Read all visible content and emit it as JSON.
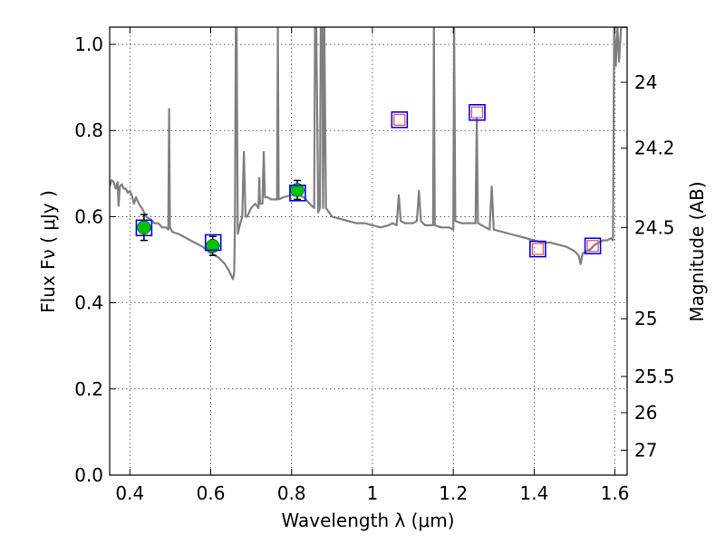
{
  "chart_data": {
    "type": "scatter",
    "xlabel": "Wavelength  λ (μm)",
    "ylabel": "Flux  Fν  ( μJy )",
    "y2label": "Magnitude (AB)",
    "xlim": [
      0.35,
      1.63
    ],
    "ylim": [
      0.0,
      1.04
    ],
    "x_ticks": [
      0.4,
      0.6,
      0.8,
      1.0,
      1.2,
      1.4,
      1.6
    ],
    "x_tick_labels": [
      "0.4",
      "0.6",
      "0.8",
      "1",
      "1.2",
      "1.4",
      "1.6"
    ],
    "y_ticks": [
      0.0,
      0.2,
      0.4,
      0.6,
      0.8,
      1.0
    ],
    "y_tick_labels": [
      "0.0",
      "0.2",
      "0.4",
      "0.6",
      "0.8",
      "1.0"
    ],
    "y2_ticks": [
      {
        "label": "24",
        "flux": 0.912
      },
      {
        "label": "24.2",
        "flux": 0.759
      },
      {
        "label": "24.5",
        "flux": 0.575
      },
      {
        "label": "25",
        "flux": 0.363
      },
      {
        "label": "25.5",
        "flux": 0.229
      },
      {
        "label": "26",
        "flux": 0.145
      },
      {
        "label": "27",
        "flux": 0.058
      }
    ],
    "grid": true,
    "colors": {
      "model": "#7f7f7f",
      "observed": "#00c000",
      "model_box": "#0000ff",
      "upper_box": "#ff5555"
    },
    "series": [
      {
        "kind": "model_spectrum",
        "points": [
          [
            0.35,
            0.67
          ],
          [
            0.355,
            0.685
          ],
          [
            0.36,
            0.68
          ],
          [
            0.365,
            0.665
          ],
          [
            0.37,
            0.68
          ],
          [
            0.372,
            0.625
          ],
          [
            0.375,
            0.67
          ],
          [
            0.38,
            0.675
          ],
          [
            0.385,
            0.665
          ],
          [
            0.39,
            0.665
          ],
          [
            0.395,
            0.655
          ],
          [
            0.4,
            0.66
          ],
          [
            0.405,
            0.65
          ],
          [
            0.41,
            0.63
          ],
          [
            0.415,
            0.645
          ],
          [
            0.42,
            0.635
          ],
          [
            0.425,
            0.625
          ],
          [
            0.43,
            0.62
          ],
          [
            0.435,
            0.61
          ],
          [
            0.44,
            0.6
          ],
          [
            0.45,
            0.595
          ],
          [
            0.46,
            0.585
          ],
          [
            0.47,
            0.585
          ],
          [
            0.48,
            0.575
          ],
          [
            0.49,
            0.575
          ],
          [
            0.495,
            0.57
          ],
          [
            0.497,
            0.85
          ],
          [
            0.499,
            0.575
          ],
          [
            0.505,
            0.565
          ],
          [
            0.52,
            0.56
          ],
          [
            0.54,
            0.55
          ],
          [
            0.56,
            0.54
          ],
          [
            0.58,
            0.53
          ],
          [
            0.6,
            0.515
          ],
          [
            0.62,
            0.505
          ],
          [
            0.635,
            0.49
          ],
          [
            0.645,
            0.475
          ],
          [
            0.65,
            0.465
          ],
          [
            0.655,
            0.455
          ],
          [
            0.658,
            0.47
          ],
          [
            0.66,
            0.6
          ],
          [
            0.662,
            1.04
          ],
          [
            0.664,
            1.04
          ],
          [
            0.667,
            0.56
          ],
          [
            0.672,
            0.58
          ],
          [
            0.678,
            0.6
          ],
          [
            0.682,
            0.75
          ],
          [
            0.686,
            0.6
          ],
          [
            0.69,
            0.6
          ],
          [
            0.7,
            0.62
          ],
          [
            0.71,
            0.63
          ],
          [
            0.718,
            0.62
          ],
          [
            0.72,
            0.69
          ],
          [
            0.722,
            0.63
          ],
          [
            0.728,
            0.63
          ],
          [
            0.731,
            0.75
          ],
          [
            0.734,
            0.645
          ],
          [
            0.74,
            0.645
          ],
          [
            0.75,
            0.64
          ],
          [
            0.76,
            0.64
          ],
          [
            0.764,
            0.64
          ],
          [
            0.766,
            1.04
          ],
          [
            0.768,
            0.64
          ],
          [
            0.78,
            0.645
          ],
          [
            0.8,
            0.65
          ],
          [
            0.82,
            0.65
          ],
          [
            0.83,
            0.645
          ],
          [
            0.84,
            0.635
          ],
          [
            0.85,
            0.625
          ],
          [
            0.856,
            0.62
          ],
          [
            0.858,
            1.04
          ],
          [
            0.861,
            1.04
          ],
          [
            0.866,
            0.61
          ],
          [
            0.87,
            0.62
          ],
          [
            0.872,
            1.04
          ],
          [
            0.876,
            1.04
          ],
          [
            0.878,
            0.62
          ],
          [
            0.881,
            1.04
          ],
          [
            0.885,
            0.62
          ],
          [
            0.9,
            0.6
          ],
          [
            0.92,
            0.595
          ],
          [
            0.94,
            0.59
          ],
          [
            0.96,
            0.585
          ],
          [
            0.98,
            0.585
          ],
          [
            1.0,
            0.58
          ],
          [
            1.02,
            0.575
          ],
          [
            1.04,
            0.58
          ],
          [
            1.05,
            0.585
          ],
          [
            1.06,
            0.58
          ],
          [
            1.065,
            0.65
          ],
          [
            1.07,
            0.59
          ],
          [
            1.08,
            0.585
          ],
          [
            1.1,
            0.585
          ],
          [
            1.11,
            0.59
          ],
          [
            1.115,
            0.66
          ],
          [
            1.12,
            0.59
          ],
          [
            1.13,
            0.58
          ],
          [
            1.14,
            0.58
          ],
          [
            1.15,
            0.58
          ],
          [
            1.152,
            1.04
          ],
          [
            1.154,
            0.58
          ],
          [
            1.17,
            0.575
          ],
          [
            1.19,
            0.575
          ],
          [
            1.2,
            0.57
          ],
          [
            1.202,
            1.04
          ],
          [
            1.205,
            0.59
          ],
          [
            1.22,
            0.585
          ],
          [
            1.24,
            0.585
          ],
          [
            1.255,
            0.585
          ],
          [
            1.258,
            0.83
          ],
          [
            1.261,
            0.585
          ],
          [
            1.28,
            0.575
          ],
          [
            1.29,
            0.57
          ],
          [
            1.295,
            0.67
          ],
          [
            1.3,
            0.57
          ],
          [
            1.32,
            0.565
          ],
          [
            1.34,
            0.56
          ],
          [
            1.36,
            0.555
          ],
          [
            1.38,
            0.55
          ],
          [
            1.4,
            0.545
          ],
          [
            1.42,
            0.54
          ],
          [
            1.44,
            0.54
          ],
          [
            1.46,
            0.535
          ],
          [
            1.48,
            0.53
          ],
          [
            1.5,
            0.52
          ],
          [
            1.51,
            0.51
          ],
          [
            1.515,
            0.49
          ],
          [
            1.52,
            0.515
          ],
          [
            1.53,
            0.52
          ],
          [
            1.54,
            0.525
          ],
          [
            1.55,
            0.535
          ],
          [
            1.56,
            0.54
          ],
          [
            1.57,
            0.545
          ],
          [
            1.58,
            0.545
          ],
          [
            1.59,
            0.55
          ],
          [
            1.595,
            0.545
          ],
          [
            1.598,
            1.04
          ],
          [
            1.602,
            0.95
          ],
          [
            1.606,
            1.04
          ],
          [
            1.61,
            0.96
          ],
          [
            1.615,
            1.04
          ],
          [
            1.62,
            1.04
          ],
          [
            1.63,
            1.04
          ]
        ]
      },
      {
        "kind": "observed_photometry",
        "points": [
          {
            "x": 0.435,
            "y": 0.575,
            "err": 0.03
          },
          {
            "x": 0.605,
            "y": 0.532,
            "err": 0.022
          },
          {
            "x": 0.814,
            "y": 0.662,
            "err": 0.022
          }
        ]
      },
      {
        "kind": "model_photometry",
        "points": [
          {
            "x": 0.435,
            "y": 0.574
          },
          {
            "x": 0.606,
            "y": 0.54
          },
          {
            "x": 0.815,
            "y": 0.655
          },
          {
            "x": 1.067,
            "y": 0.825
          },
          {
            "x": 1.259,
            "y": 0.842
          },
          {
            "x": 1.409,
            "y": 0.525
          },
          {
            "x": 1.545,
            "y": 0.532
          }
        ]
      },
      {
        "kind": "upper_limits",
        "points": [
          {
            "x": 1.067,
            "y": 0.825
          },
          {
            "x": 1.259,
            "y": 0.842
          },
          {
            "x": 1.409,
            "y": 0.525
          },
          {
            "x": 1.545,
            "y": 0.532
          }
        ]
      }
    ]
  }
}
